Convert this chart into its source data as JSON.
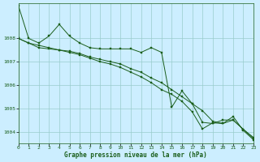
{
  "background_color": "#cceeff",
  "grid_color": "#99cccc",
  "line_color": "#1a5e1a",
  "xlabel": "Graphe pression niveau de la mer (hPa)",
  "ylim": [
    1003.5,
    1009.5
  ],
  "xlim": [
    0,
    23
  ],
  "yticks": [
    1004,
    1005,
    1006,
    1007,
    1008
  ],
  "xticks": [
    0,
    1,
    2,
    3,
    4,
    5,
    6,
    7,
    8,
    9,
    10,
    11,
    12,
    13,
    14,
    15,
    16,
    17,
    18,
    19,
    20,
    21,
    22,
    23
  ],
  "series": [
    [
      1009.4,
      1008.0,
      1007.8,
      1008.1,
      1008.6,
      1008.1,
      1007.8,
      1007.6,
      1007.55,
      1007.55,
      1007.55,
      1007.55,
      1007.4,
      1007.6,
      1007.4,
      1005.05,
      1005.75,
      1005.2,
      1004.4,
      1004.35,
      1004.5,
      1004.5,
      1004.1,
      1003.75
    ],
    [
      1008.0,
      1007.8,
      1007.6,
      1007.55,
      1007.5,
      1007.45,
      1007.35,
      1007.2,
      1007.1,
      1007.0,
      1006.9,
      1006.7,
      1006.55,
      1006.3,
      1006.1,
      1005.8,
      1005.5,
      1005.2,
      1004.9,
      1004.45,
      1004.35,
      1004.5,
      1004.1,
      1003.7
    ],
    [
      1008.0,
      1007.8,
      1007.7,
      1007.6,
      1007.5,
      1007.4,
      1007.3,
      1007.15,
      1007.0,
      1006.9,
      1006.75,
      1006.55,
      1006.35,
      1006.1,
      1005.8,
      1005.6,
      1005.3,
      1004.85,
      1004.12,
      1004.38,
      1004.35,
      1004.65,
      1004.05,
      1003.65
    ]
  ]
}
